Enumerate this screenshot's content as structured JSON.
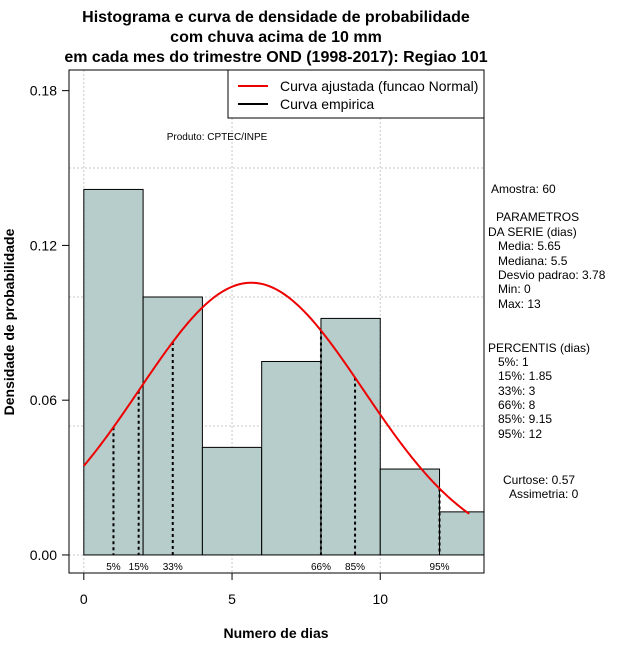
{
  "chart_data": {
    "type": "bar",
    "title_lines": [
      "Histograma e curva de densidade de probabilidade",
      "com chuva acima de 10 mm",
      "em cada mes do trimestre OND (1998-2017): Regiao 101"
    ],
    "xlabel": "Numero de dias",
    "ylabel": "Densidade de probabilidade",
    "xlim": [
      -0.5,
      13.5
    ],
    "ylim": [
      -0.007,
      0.188
    ],
    "x_ticks": [
      0,
      5,
      10
    ],
    "y_ticks": [
      0.0,
      0.06,
      0.12,
      0.18
    ],
    "y_tick_labels": [
      "0.00",
      "0.06",
      "0.12",
      "0.18"
    ],
    "grid": true,
    "bins": [
      {
        "start": 0,
        "end": 2,
        "density": 0.1417
      },
      {
        "start": 2,
        "end": 4,
        "density": 0.1
      },
      {
        "start": 4,
        "end": 6,
        "density": 0.0417
      },
      {
        "start": 6,
        "end": 8,
        "density": 0.075
      },
      {
        "start": 8,
        "end": 10,
        "density": 0.0917
      },
      {
        "start": 10,
        "end": 12,
        "density": 0.0333
      },
      {
        "start": 12,
        "end": 14,
        "density": 0.0167
      }
    ],
    "bar_color": "#b7cdcb",
    "normal_curve": {
      "mean": 5.65,
      "sd": 3.78,
      "x_from": 0,
      "x_to": 13,
      "color": "#ee0000"
    },
    "percentile_lines": [
      {
        "label": "5%",
        "x": 1
      },
      {
        "label": "15%",
        "x": 1.85
      },
      {
        "label": "33%",
        "x": 3
      },
      {
        "label": "66%",
        "x": 8
      },
      {
        "label": "85%",
        "x": 9.15
      },
      {
        "label": "95%",
        "x": 12
      }
    ],
    "legend": {
      "position": "top-right",
      "entries": [
        {
          "label": "Curva ajustada (funcao Normal)",
          "color": "#ee0000"
        },
        {
          "label": "Curva empirica",
          "color": "#000000"
        }
      ]
    },
    "annotation": "Produto: CPTEC/INPE"
  },
  "stats_panel": {
    "sample": "Amostra: 60",
    "params_header_1": "PARAMETROS",
    "params_header_2": "DA SERIE (dias)",
    "params": [
      "Media: 5.65",
      "Mediana: 5.5",
      "Desvio padrao: 3.78",
      "Min: 0",
      "Max: 13"
    ],
    "percentis_header": "PERCENTIS (dias)",
    "percentis": [
      "5%: 1",
      "15%: 1.85",
      "33%: 3",
      "66%: 8",
      "85%: 9.15",
      "95%: 12"
    ],
    "curtose": "Curtose: 0.57",
    "assimetria": "Assimetria: 0"
  }
}
